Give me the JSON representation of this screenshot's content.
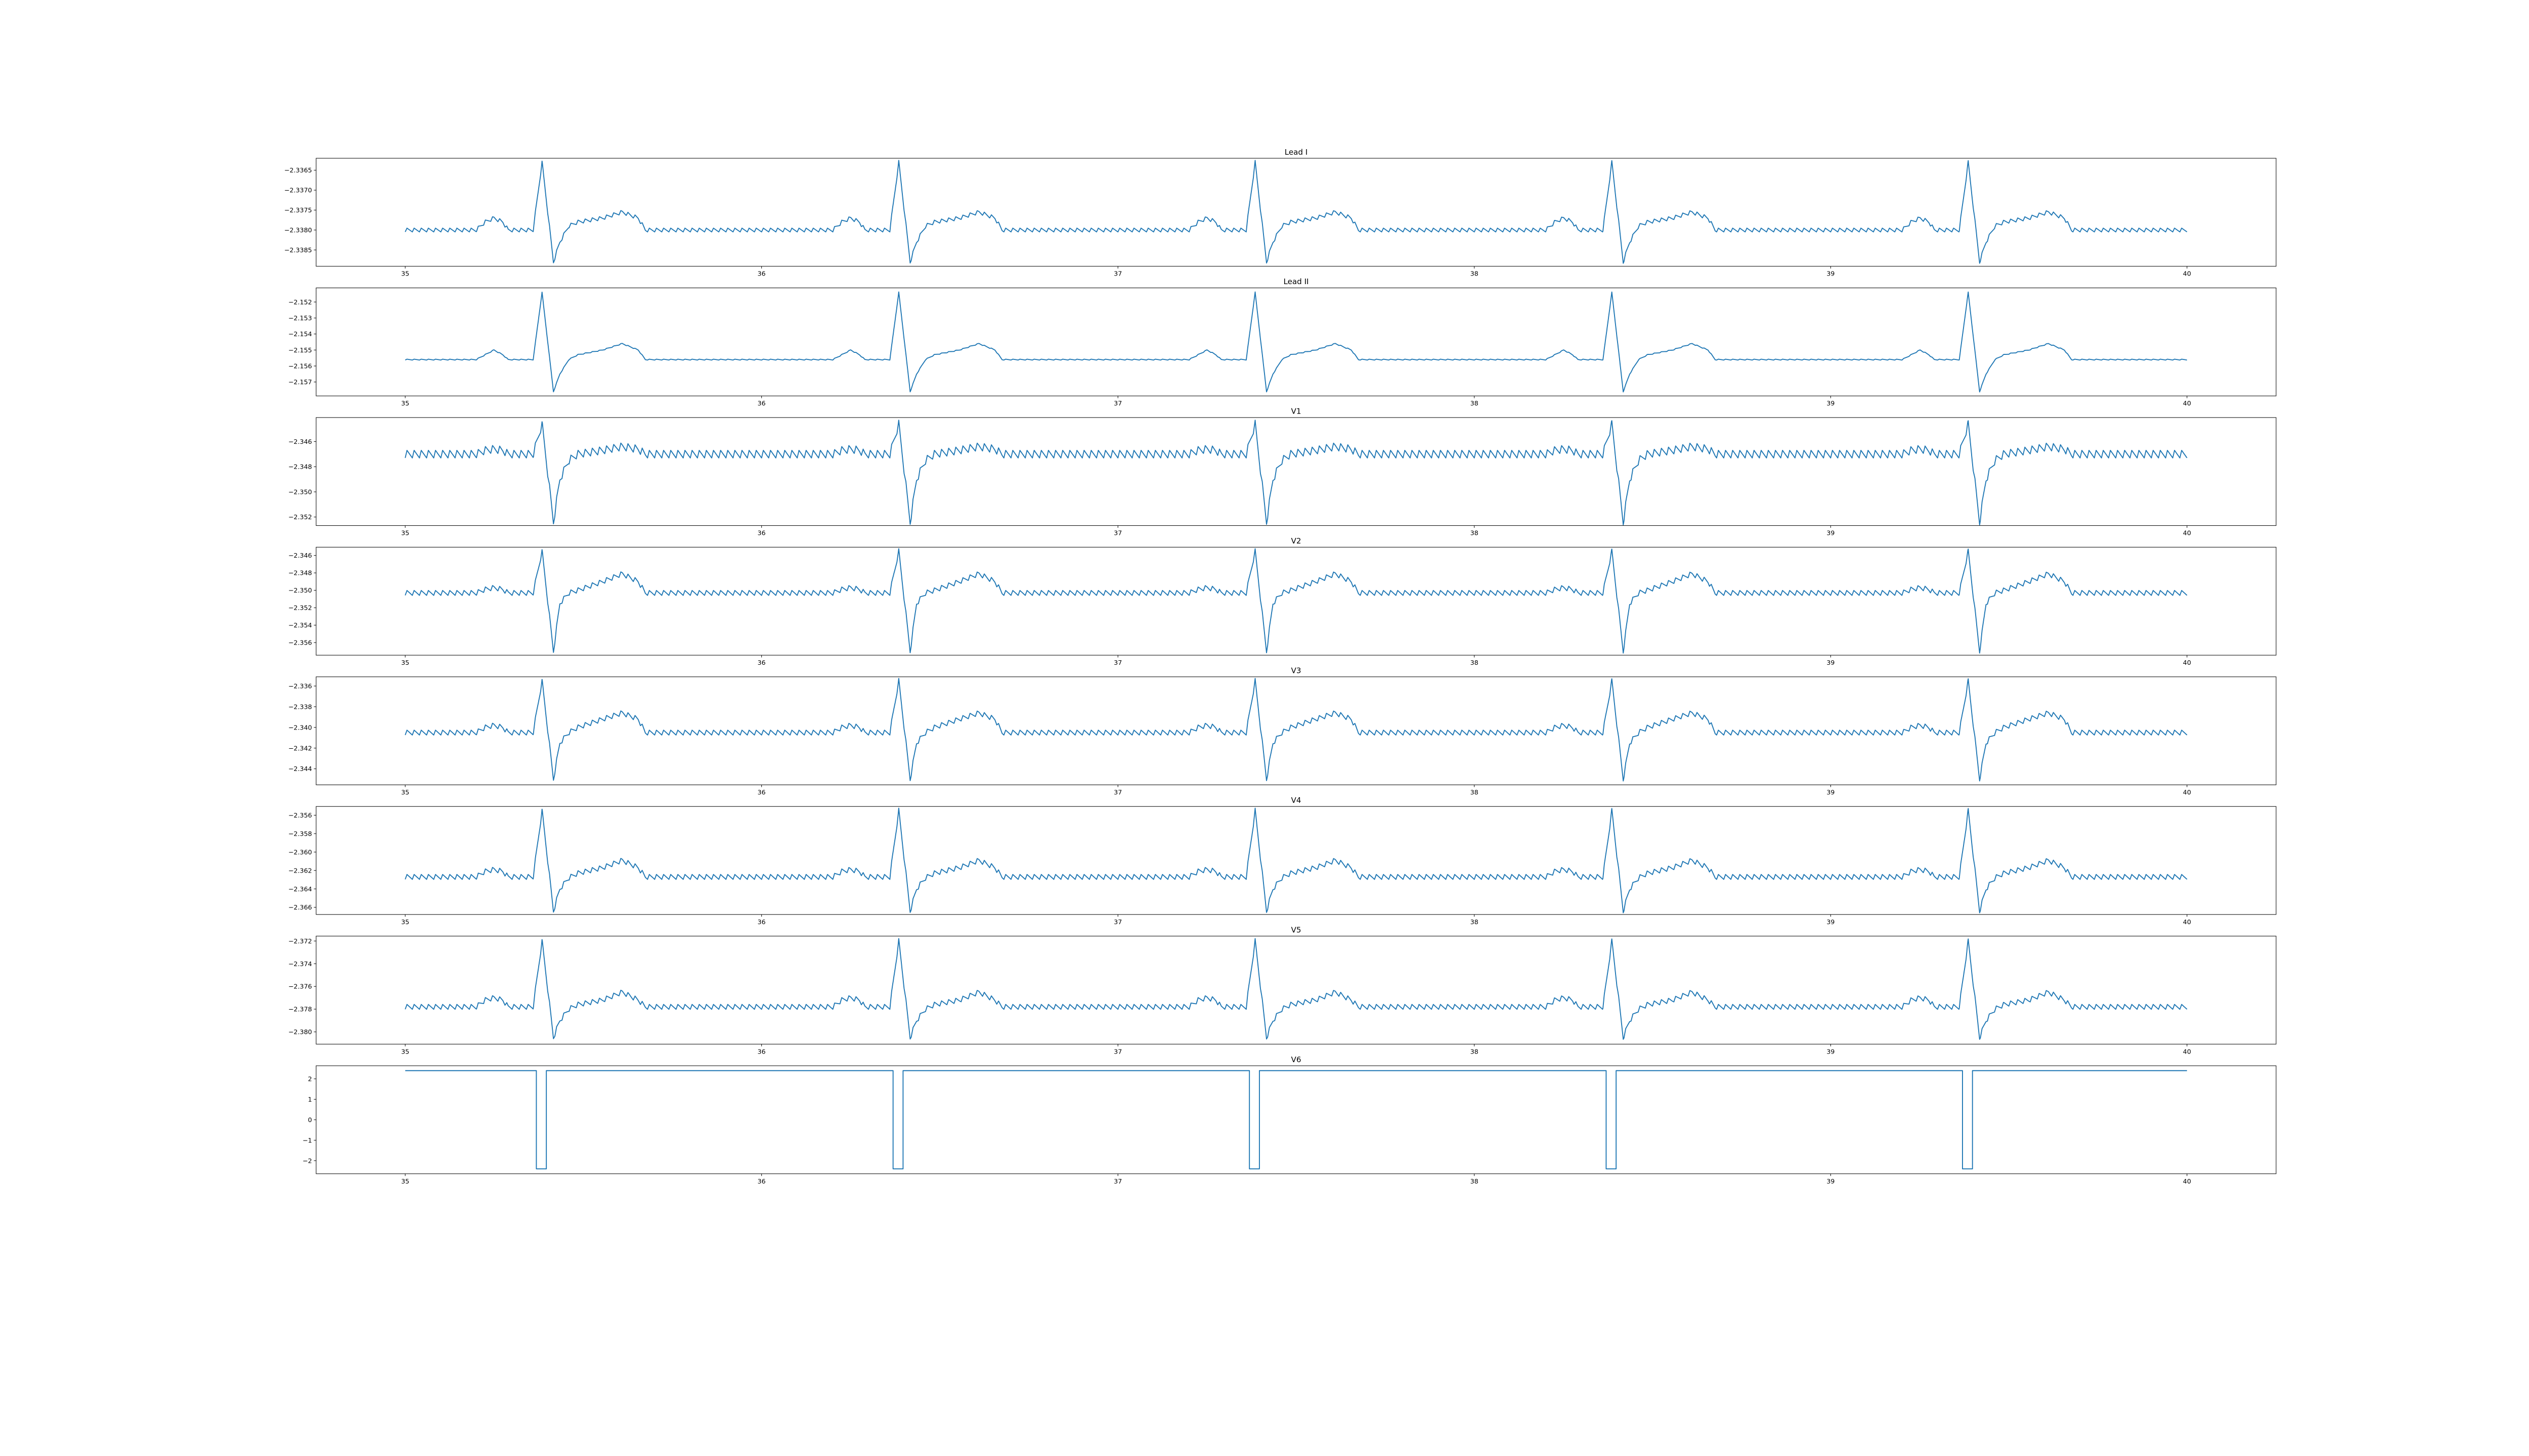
{
  "chart_data": {
    "type": "line",
    "line_color": "#1f77b4",
    "xlim": [
      34.75,
      40.25
    ],
    "xticks": [
      35,
      36,
      37,
      38,
      39,
      40
    ],
    "xtick_labels": [
      "35",
      "36",
      "37",
      "38",
      "39",
      "40"
    ],
    "x": [
      35.0,
      35.199,
      35.224,
      35.249,
      35.274,
      35.289,
      35.359,
      35.384,
      35.416,
      35.434,
      35.459,
      35.484,
      35.554,
      35.609,
      35.654,
      35.674,
      36.2,
      36.225,
      36.25,
      36.275,
      36.29,
      36.36,
      36.385,
      36.417,
      36.435,
      36.46,
      36.485,
      36.555,
      36.61,
      36.655,
      36.675,
      37.2,
      37.225,
      37.25,
      37.275,
      37.29,
      37.36,
      37.385,
      37.417,
      37.435,
      37.46,
      37.485,
      37.555,
      37.61,
      37.655,
      37.675,
      38.201,
      38.226,
      38.251,
      38.276,
      38.291,
      38.361,
      38.386,
      38.418,
      38.436,
      38.461,
      38.486,
      38.556,
      38.611,
      38.656,
      38.676,
      39.201,
      39.226,
      39.251,
      39.276,
      39.291,
      39.361,
      39.386,
      39.418,
      39.436,
      39.461,
      39.486,
      39.556,
      39.611,
      39.656,
      39.676,
      40.0
    ],
    "panels": [
      {
        "title": "Lead I",
        "ylim": [
          -2.33891,
          -2.3362
        ],
        "yticks": [
          -2.3365,
          -2.337,
          -2.3375,
          -2.338,
          -2.3385
        ],
        "ytick_labels": [
          "−2.3365",
          "−2.3370",
          "−2.3375",
          "−2.3380",
          "−2.3385"
        ],
        "y": [
          -2.338,
          -2.338,
          -2.3378,
          -2.3377,
          -2.3378,
          -2.338,
          -2.338,
          -2.3363,
          -2.3388,
          -2.3383,
          -2.3379,
          -2.3378,
          -2.3377,
          -2.33755,
          -2.3377,
          -2.338,
          -2.338,
          -2.3378,
          -2.3377,
          -2.3378,
          -2.338,
          -2.338,
          -2.3363,
          -2.3388,
          -2.3383,
          -2.3379,
          -2.3378,
          -2.3377,
          -2.33755,
          -2.3377,
          -2.338,
          -2.338,
          -2.3378,
          -2.3377,
          -2.3378,
          -2.338,
          -2.338,
          -2.3363,
          -2.3388,
          -2.3383,
          -2.3379,
          -2.3378,
          -2.3377,
          -2.33755,
          -2.3377,
          -2.338,
          -2.338,
          -2.3378,
          -2.3377,
          -2.3378,
          -2.338,
          -2.338,
          -2.3363,
          -2.3388,
          -2.3383,
          -2.3379,
          -2.3378,
          -2.3377,
          -2.33755,
          -2.3377,
          -2.338,
          -2.338,
          -2.3378,
          -2.3377,
          -2.3378,
          -2.338,
          -2.338,
          -2.3363,
          -2.3388,
          -2.3383,
          -2.3379,
          -2.3378,
          -2.3377,
          -2.33755,
          -2.3377,
          -2.338,
          -2.338
        ]
      },
      {
        "title": "Lead II",
        "ylim": [
          -2.15787,
          -2.15112
        ],
        "yticks": [
          -2.152,
          -2.153,
          -2.154,
          -2.155,
          -2.156,
          -2.157
        ],
        "ytick_labels": [
          "−2.152",
          "−2.153",
          "−2.154",
          "−2.155",
          "−2.156",
          "−2.157"
        ],
        "y": [
          -2.1556,
          -2.1556,
          -2.1553,
          -2.155,
          -2.1553,
          -2.1556,
          -2.1556,
          -2.1514,
          -2.1576,
          -2.1565,
          -2.1556,
          -2.1553,
          -2.155,
          -2.1546,
          -2.155,
          -2.1556,
          -2.1556,
          -2.1553,
          -2.155,
          -2.1553,
          -2.1556,
          -2.1556,
          -2.1514,
          -2.1576,
          -2.1565,
          -2.1556,
          -2.1553,
          -2.155,
          -2.1546,
          -2.155,
          -2.1556,
          -2.1556,
          -2.1553,
          -2.155,
          -2.1553,
          -2.1556,
          -2.1556,
          -2.1514,
          -2.1576,
          -2.1565,
          -2.1556,
          -2.1553,
          -2.155,
          -2.1546,
          -2.155,
          -2.1556,
          -2.1556,
          -2.1553,
          -2.155,
          -2.1553,
          -2.1556,
          -2.1556,
          -2.1514,
          -2.1576,
          -2.1565,
          -2.1556,
          -2.1553,
          -2.155,
          -2.1546,
          -2.155,
          -2.1556,
          -2.1556,
          -2.1553,
          -2.155,
          -2.1553,
          -2.1556,
          -2.1556,
          -2.1514,
          -2.1576,
          -2.1565,
          -2.1556,
          -2.1553,
          -2.155,
          -2.1546,
          -2.155,
          -2.1556,
          -2.1556
        ]
      },
      {
        "title": "V1",
        "ylim": [
          -2.35268,
          -2.34409
        ],
        "yticks": [
          -2.346,
          -2.348,
          -2.35,
          -2.352
        ],
        "ytick_labels": [
          "−2.346",
          "−2.348",
          "−2.350",
          "−2.352"
        ],
        "y": [
          -2.347,
          -2.347,
          -2.3467,
          -2.3466,
          -2.3467,
          -2.347,
          -2.347,
          -2.3446,
          -2.3524,
          -2.349,
          -2.3475,
          -2.347,
          -2.3467,
          -2.3464,
          -2.3466,
          -2.347,
          -2.347,
          -2.3467,
          -2.3466,
          -2.3467,
          -2.347,
          -2.347,
          -2.3446,
          -2.3524,
          -2.349,
          -2.3475,
          -2.347,
          -2.3467,
          -2.3464,
          -2.3466,
          -2.347,
          -2.347,
          -2.3467,
          -2.3466,
          -2.3467,
          -2.347,
          -2.347,
          -2.3446,
          -2.3524,
          -2.349,
          -2.3475,
          -2.347,
          -2.3467,
          -2.3464,
          -2.3466,
          -2.347,
          -2.347,
          -2.3467,
          -2.3466,
          -2.3467,
          -2.347,
          -2.347,
          -2.3446,
          -2.3524,
          -2.349,
          -2.3475,
          -2.347,
          -2.3467,
          -2.3464,
          -2.3466,
          -2.347,
          -2.347,
          -2.3467,
          -2.3466,
          -2.3467,
          -2.347,
          -2.347,
          -2.3446,
          -2.3524,
          -2.349,
          -2.3475,
          -2.347,
          -2.3467,
          -2.3464,
          -2.3466,
          -2.347,
          -2.347
        ]
      },
      {
        "title": "V2",
        "ylim": [
          -2.35745,
          -2.34505
        ],
        "yticks": [
          -2.346,
          -2.348,
          -2.35,
          -2.352,
          -2.354,
          -2.356
        ],
        "ytick_labels": [
          "−2.346",
          "−2.348",
          "−2.350",
          "−2.352",
          "−2.354",
          "−2.356"
        ],
        "y": [
          -2.3503,
          -2.3503,
          -2.3499,
          -2.3497,
          -2.3499,
          -2.3503,
          -2.3503,
          -2.3455,
          -2.357,
          -2.3515,
          -2.3503,
          -2.35,
          -2.349,
          -2.3481,
          -2.349,
          -2.3503,
          -2.3503,
          -2.3499,
          -2.3497,
          -2.3499,
          -2.3503,
          -2.3503,
          -2.3455,
          -2.357,
          -2.3515,
          -2.3503,
          -2.35,
          -2.349,
          -2.3481,
          -2.349,
          -2.3503,
          -2.3503,
          -2.3499,
          -2.3497,
          -2.3499,
          -2.3503,
          -2.3503,
          -2.3455,
          -2.357,
          -2.3515,
          -2.3503,
          -2.35,
          -2.349,
          -2.3481,
          -2.349,
          -2.3503,
          -2.3503,
          -2.3499,
          -2.3497,
          -2.3499,
          -2.3503,
          -2.3503,
          -2.3455,
          -2.357,
          -2.3515,
          -2.3503,
          -2.35,
          -2.349,
          -2.3481,
          -2.349,
          -2.3503,
          -2.3503,
          -2.3499,
          -2.3497,
          -2.3499,
          -2.3503,
          -2.3503,
          -2.3455,
          -2.357,
          -2.3515,
          -2.3503,
          -2.35,
          -2.349,
          -2.3481,
          -2.349,
          -2.3503,
          -2.3503
        ]
      },
      {
        "title": "V3",
        "ylim": [
          -2.34555,
          -2.33511
        ],
        "yticks": [
          -2.336,
          -2.338,
          -2.34,
          -2.342,
          -2.344
        ],
        "ytick_labels": [
          "−2.336",
          "−2.338",
          "−2.340",
          "−2.342",
          "−2.344"
        ],
        "y": [
          -2.3405,
          -2.3405,
          -2.34,
          -2.3398,
          -2.34,
          -2.3405,
          -2.3405,
          -2.3355,
          -2.345,
          -2.3415,
          -2.3405,
          -2.34,
          -2.3392,
          -2.3386,
          -2.3392,
          -2.3405,
          -2.3405,
          -2.34,
          -2.3398,
          -2.34,
          -2.3405,
          -2.3405,
          -2.3355,
          -2.345,
          -2.3415,
          -2.3405,
          -2.34,
          -2.3392,
          -2.3386,
          -2.3392,
          -2.3405,
          -2.3405,
          -2.34,
          -2.3398,
          -2.34,
          -2.3405,
          -2.3405,
          -2.3355,
          -2.345,
          -2.3415,
          -2.3405,
          -2.34,
          -2.3392,
          -2.3386,
          -2.3392,
          -2.3405,
          -2.3405,
          -2.34,
          -2.3398,
          -2.34,
          -2.3405,
          -2.3405,
          -2.3355,
          -2.345,
          -2.3415,
          -2.3405,
          -2.34,
          -2.3392,
          -2.3386,
          -2.3392,
          -2.3405,
          -2.3405,
          -2.34,
          -2.3398,
          -2.34,
          -2.3405,
          -2.3405,
          -2.3355,
          -2.345,
          -2.3415,
          -2.3405,
          -2.34,
          -2.3392,
          -2.3386,
          -2.3392,
          -2.3405,
          -2.3405
        ]
      },
      {
        "title": "V4",
        "ylim": [
          -2.36678,
          -2.35505
        ],
        "yticks": [
          -2.356,
          -2.358,
          -2.36,
          -2.362,
          -2.364,
          -2.366
        ],
        "ytick_labels": [
          "−2.356",
          "−2.358",
          "−2.360",
          "−2.362",
          "−2.364",
          "−2.366"
        ],
        "y": [
          -2.3627,
          -2.3627,
          -2.3621,
          -2.3619,
          -2.3621,
          -2.3627,
          -2.3627,
          -2.3555,
          -2.3664,
          -2.364,
          -2.3628,
          -2.3623,
          -2.3617,
          -2.3609,
          -2.3617,
          -2.3627,
          -2.3627,
          -2.3621,
          -2.3619,
          -2.3621,
          -2.3627,
          -2.3627,
          -2.3555,
          -2.3664,
          -2.364,
          -2.3628,
          -2.3623,
          -2.3617,
          -2.3609,
          -2.3617,
          -2.3627,
          -2.3627,
          -2.3621,
          -2.3619,
          -2.3621,
          -2.3627,
          -2.3627,
          -2.3555,
          -2.3664,
          -2.364,
          -2.3628,
          -2.3623,
          -2.3617,
          -2.3609,
          -2.3617,
          -2.3627,
          -2.3627,
          -2.3621,
          -2.3619,
          -2.3621,
          -2.3627,
          -2.3627,
          -2.3555,
          -2.3664,
          -2.364,
          -2.3628,
          -2.3623,
          -2.3617,
          -2.3609,
          -2.3617,
          -2.3627,
          -2.3627,
          -2.3621,
          -2.3619,
          -2.3621,
          -2.3627,
          -2.3627,
          -2.3555,
          -2.3664,
          -2.364,
          -2.3628,
          -2.3623,
          -2.3617,
          -2.3609,
          -2.3617,
          -2.3627,
          -2.3627
        ]
      },
      {
        "title": "V5",
        "ylim": [
          -2.38108,
          -2.37157
        ],
        "yticks": [
          -2.372,
          -2.374,
          -2.376,
          -2.378,
          -2.38
        ],
        "ytick_labels": [
          "−2.372",
          "−2.374",
          "−2.376",
          "−2.378",
          "−2.380"
        ],
        "y": [
          -2.3778,
          -2.3778,
          -2.3772,
          -2.377,
          -2.3772,
          -2.3778,
          -2.3778,
          -2.372,
          -2.3805,
          -2.379,
          -2.378,
          -2.3776,
          -2.3772,
          -2.3765,
          -2.3772,
          -2.3778,
          -2.3778,
          -2.3772,
          -2.377,
          -2.3772,
          -2.3778,
          -2.3778,
          -2.372,
          -2.3805,
          -2.379,
          -2.378,
          -2.3776,
          -2.3772,
          -2.3765,
          -2.3772,
          -2.3778,
          -2.3778,
          -2.3772,
          -2.377,
          -2.3772,
          -2.3778,
          -2.3778,
          -2.372,
          -2.3805,
          -2.379,
          -2.378,
          -2.3776,
          -2.3772,
          -2.3765,
          -2.3772,
          -2.3778,
          -2.3778,
          -2.3772,
          -2.377,
          -2.3772,
          -2.3778,
          -2.3778,
          -2.372,
          -2.3805,
          -2.379,
          -2.378,
          -2.3776,
          -2.3772,
          -2.3765,
          -2.3772,
          -2.3778,
          -2.3778,
          -2.3772,
          -2.377,
          -2.3772,
          -2.3778,
          -2.3778,
          -2.372,
          -2.3805,
          -2.379,
          -2.378,
          -2.3776,
          -2.3772,
          -2.3765,
          -2.3772,
          -2.3778,
          -2.3778
        ]
      },
      {
        "title": "V6",
        "ylim": [
          -2.64,
          2.64
        ],
        "yticks": [
          2,
          1,
          0,
          -1,
          -2
        ],
        "ytick_labels": [
          "2",
          "1",
          "0",
          "−1",
          "−2"
        ],
        "x": [
          35.0,
          35.368,
          35.368,
          35.396,
          35.396,
          36.369,
          36.369,
          36.397,
          36.397,
          37.369,
          37.369,
          37.397,
          37.397,
          38.37,
          38.37,
          38.398,
          38.398,
          39.37,
          39.37,
          39.398,
          39.398,
          40.0
        ],
        "y": [
          2.4,
          2.4,
          -2.4,
          -2.4,
          2.4,
          2.4,
          -2.4,
          -2.4,
          2.4,
          2.4,
          -2.4,
          -2.4,
          2.4,
          2.4,
          -2.4,
          -2.4,
          2.4,
          2.4,
          -2.4,
          -2.4,
          2.4,
          2.4
        ]
      }
    ]
  }
}
